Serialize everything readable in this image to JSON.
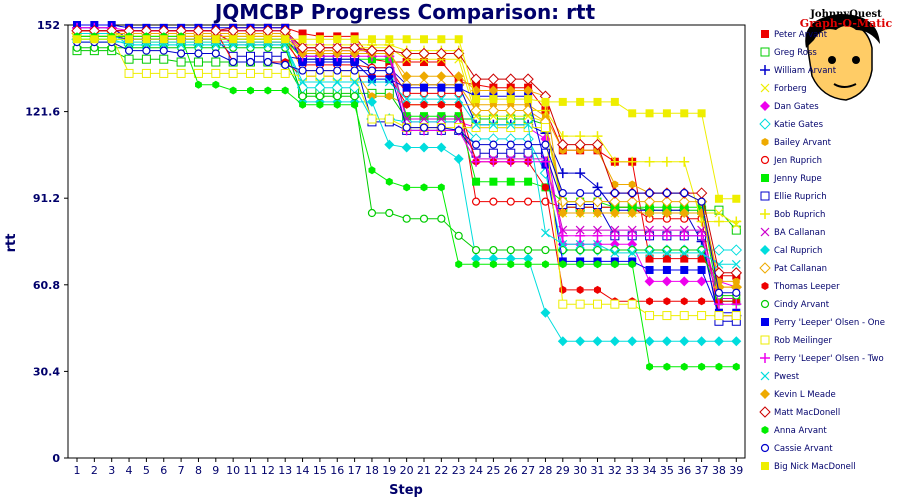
{
  "badge": {
    "line1": "JohnnyQuest",
    "line2": "Graph-O-Matic"
  },
  "chart_data": {
    "type": "line",
    "title": "JQMCBP Progress Comparison: rtt",
    "xlabel": "Step",
    "ylabel": "rtt",
    "x": [
      1,
      2,
      3,
      4,
      5,
      6,
      7,
      8,
      9,
      10,
      11,
      12,
      13,
      14,
      15,
      16,
      17,
      18,
      19,
      20,
      21,
      22,
      23,
      24,
      25,
      26,
      27,
      28,
      29,
      30,
      31,
      32,
      33,
      34,
      35,
      36,
      37,
      38,
      39
    ],
    "ylim": [
      0,
      152
    ],
    "yticks": [
      0,
      30.4,
      60.8,
      91.2,
      121.6,
      152
    ],
    "ytick_labels": [
      "0",
      "30.4",
      "60.8",
      "91.2",
      "121.6",
      "152"
    ],
    "grid": false,
    "legend_position": "right",
    "series": [
      {
        "name": "Peter Arvant",
        "color": "#ee0000",
        "marker": "square-filled",
        "values": [
          150,
          150,
          150,
          150,
          150,
          150,
          150,
          150,
          150,
          151,
          151,
          151,
          151,
          149,
          148,
          148,
          148,
          140,
          139,
          139,
          139,
          139,
          132,
          131,
          130,
          130,
          130,
          122,
          108,
          108,
          108,
          104,
          104,
          70,
          70,
          70,
          70,
          64,
          64
        ]
      },
      {
        "name": "Greg Ross",
        "color": "#00cc00",
        "marker": "square-open",
        "values": [
          143,
          143,
          143,
          140,
          140,
          140,
          139,
          139,
          139,
          139,
          139,
          139,
          139,
          128,
          128,
          128,
          128,
          128,
          128,
          119,
          119,
          119,
          119,
          119,
          119,
          119,
          119,
          117,
          88,
          88,
          88,
          88,
          88,
          87,
          87,
          87,
          87,
          87,
          80
        ]
      },
      {
        "name": "William Arvant",
        "color": "#0000cc",
        "marker": "plus",
        "values": [
          151,
          151,
          151,
          147,
          147,
          147,
          147,
          147,
          147,
          147,
          147,
          147,
          147,
          141,
          141,
          141,
          141,
          137,
          137,
          131,
          131,
          131,
          131,
          117,
          117,
          117,
          117,
          114,
          100,
          100,
          95,
          87,
          87,
          87,
          87,
          87,
          76,
          50,
          50
        ]
      },
      {
        "name": "Forberg",
        "color": "#eeee00",
        "marker": "x",
        "values": [
          150,
          150,
          150,
          146,
          146,
          146,
          146,
          146,
          146,
          146,
          146,
          146,
          146,
          144,
          144,
          144,
          144,
          144,
          144,
          140,
          140,
          140,
          140,
          120,
          120,
          120,
          120,
          118,
          86,
          86,
          86,
          86,
          86,
          86,
          86,
          86,
          86,
          86,
          82
        ]
      },
      {
        "name": "Dan Gates",
        "color": "#ee00ee",
        "marker": "diamond",
        "values": [
          150,
          150,
          150,
          150,
          150,
          150,
          150,
          150,
          150,
          145,
          145,
          145,
          145,
          143,
          143,
          143,
          143,
          143,
          143,
          118,
          118,
          118,
          118,
          116,
          116,
          116,
          116,
          112,
          75,
          75,
          75,
          75,
          75,
          62,
          62,
          62,
          62,
          62,
          60
        ]
      },
      {
        "name": "Katie Gates",
        "color": "#00dddd",
        "marker": "diamond-open",
        "values": [
          147,
          147,
          147,
          145,
          145,
          145,
          145,
          145,
          145,
          145,
          145,
          145,
          145,
          130,
          130,
          130,
          130,
          119,
          119,
          118,
          118,
          118,
          118,
          112,
          112,
          112,
          112,
          100,
          73,
          73,
          73,
          73,
          73,
          73,
          73,
          73,
          73,
          73,
          73
        ]
      },
      {
        "name": "Bailey Arvant",
        "color": "#eeaa00",
        "marker": "hexagon",
        "values": [
          148,
          148,
          148,
          148,
          148,
          148,
          148,
          148,
          148,
          148,
          148,
          148,
          148,
          136,
          136,
          136,
          136,
          127,
          127,
          124,
          124,
          124,
          124,
          124,
          124,
          124,
          124,
          120,
          108,
          108,
          108,
          96,
          96,
          93,
          93,
          93,
          90,
          62,
          62
        ]
      },
      {
        "name": "Jen Ruprich",
        "color": "#ee0000",
        "marker": "circle-open",
        "values": [
          149,
          149,
          149,
          149,
          149,
          149,
          149,
          149,
          149,
          146,
          146,
          146,
          146,
          138,
          138,
          138,
          138,
          137,
          137,
          128,
          128,
          128,
          128,
          90,
          90,
          90,
          90,
          90,
          88,
          88,
          88,
          88,
          88,
          84,
          84,
          84,
          84,
          50,
          50
        ]
      },
      {
        "name": "Jenny Rupe",
        "color": "#00ee00",
        "marker": "square-filled",
        "values": [
          147,
          147,
          147,
          147,
          147,
          147,
          147,
          147,
          147,
          147,
          147,
          147,
          147,
          140,
          140,
          140,
          140,
          140,
          140,
          120,
          120,
          120,
          120,
          97,
          97,
          97,
          97,
          95,
          90,
          90,
          90,
          88,
          88,
          88,
          88,
          88,
          88,
          55,
          55
        ]
      },
      {
        "name": "Ellie Ruprich",
        "color": "#0000cc",
        "marker": "square-open",
        "values": [
          148,
          148,
          148,
          147,
          147,
          147,
          147,
          147,
          147,
          141,
          141,
          141,
          141,
          140,
          140,
          140,
          140,
          118,
          118,
          115,
          115,
          115,
          115,
          107,
          107,
          107,
          107,
          107,
          89,
          89,
          89,
          78,
          78,
          78,
          78,
          78,
          78,
          48,
          48
        ]
      },
      {
        "name": "Bob Ruprich",
        "color": "#eeee00",
        "marker": "plus",
        "values": [
          149,
          149,
          149,
          148,
          148,
          148,
          148,
          148,
          148,
          148,
          148,
          148,
          148,
          145,
          145,
          145,
          145,
          145,
          145,
          143,
          143,
          143,
          143,
          122,
          122,
          122,
          122,
          122,
          113,
          113,
          113,
          104,
          104,
          104,
          104,
          104,
          83,
          83,
          83
        ]
      },
      {
        "name": "BA Callanan",
        "color": "#cc00cc",
        "marker": "x",
        "values": [
          149,
          149,
          149,
          149,
          149,
          149,
          149,
          149,
          149,
          149,
          149,
          149,
          149,
          144,
          144,
          144,
          144,
          142,
          142,
          119,
          119,
          119,
          119,
          105,
          105,
          105,
          105,
          105,
          80,
          80,
          80,
          80,
          80,
          80,
          80,
          80,
          80,
          56,
          56
        ]
      },
      {
        "name": "Cal Ruprich",
        "color": "#00dddd",
        "marker": "diamond",
        "values": [
          146,
          146,
          146,
          146,
          146,
          146,
          146,
          146,
          146,
          146,
          146,
          146,
          146,
          125,
          125,
          125,
          125,
          125,
          110,
          109,
          109,
          109,
          105,
          70,
          70,
          70,
          70,
          51,
          41,
          41,
          41,
          41,
          41,
          41,
          41,
          41,
          41,
          41,
          41
        ]
      },
      {
        "name": "Pat Callanan",
        "color": "#eeaa00",
        "marker": "diamond-open",
        "values": [
          149,
          149,
          149,
          149,
          149,
          149,
          149,
          149,
          149,
          149,
          149,
          149,
          149,
          143,
          143,
          143,
          143,
          143,
          143,
          131,
          131,
          131,
          131,
          122,
          122,
          122,
          122,
          118,
          90,
          90,
          90,
          90,
          90,
          90,
          90,
          90,
          90,
          60,
          60
        ]
      },
      {
        "name": "Thomas Leeper",
        "color": "#ee0000",
        "marker": "hexagon",
        "values": [
          150,
          150,
          150,
          150,
          150,
          150,
          150,
          150,
          150,
          139,
          139,
          139,
          139,
          134,
          134,
          134,
          134,
          134,
          134,
          124,
          124,
          124,
          124,
          104,
          104,
          104,
          104,
          95,
          59,
          59,
          59,
          55,
          55,
          55,
          55,
          55,
          55,
          55,
          55
        ]
      },
      {
        "name": "Cindy Arvant",
        "color": "#00cc00",
        "marker": "circle-open",
        "values": [
          144,
          144,
          144,
          144,
          144,
          144,
          144,
          144,
          144,
          144,
          144,
          144,
          144,
          127,
          127,
          127,
          127,
          86,
          86,
          84,
          84,
          84,
          78,
          73,
          73,
          73,
          73,
          73,
          73,
          73,
          73,
          73,
          73,
          73,
          73,
          73,
          73,
          57,
          57
        ]
      },
      {
        "name": "Perry 'Leeper' Olsen - One",
        "color": "#0000ee",
        "marker": "square-filled",
        "values": [
          152,
          152,
          152,
          151,
          151,
          151,
          151,
          151,
          151,
          151,
          151,
          151,
          151,
          139,
          139,
          139,
          139,
          133,
          133,
          130,
          130,
          130,
          130,
          127,
          127,
          127,
          127,
          103,
          69,
          69,
          69,
          69,
          69,
          66,
          66,
          66,
          66,
          51,
          51
        ]
      },
      {
        "name": "Rob Meilinger",
        "color": "#eeee00",
        "marker": "square-open",
        "values": [
          148,
          148,
          148,
          135,
          135,
          135,
          135,
          135,
          135,
          135,
          135,
          135,
          135,
          134,
          134,
          134,
          134,
          119,
          119,
          116,
          116,
          116,
          116,
          116,
          116,
          116,
          116,
          116,
          54,
          54,
          54,
          54,
          54,
          50,
          50,
          50,
          50,
          50,
          50
        ]
      },
      {
        "name": "Perry 'Leeper' Olsen - Two",
        "color": "#ee00ee",
        "marker": "plus",
        "values": [
          151,
          151,
          151,
          150,
          150,
          150,
          150,
          150,
          150,
          150,
          150,
          150,
          150,
          141,
          141,
          141,
          141,
          141,
          141,
          115,
          115,
          115,
          115,
          104,
          104,
          104,
          104,
          104,
          78,
          78,
          78,
          78,
          78,
          78,
          78,
          78,
          78,
          54,
          54
        ]
      },
      {
        "name": "Pwest",
        "color": "#00dddd",
        "marker": "x",
        "values": [
          149,
          149,
          149,
          145,
          145,
          145,
          145,
          145,
          145,
          145,
          145,
          145,
          145,
          132,
          132,
          132,
          132,
          132,
          132,
          126,
          126,
          126,
          126,
          117,
          117,
          117,
          117,
          79,
          75,
          75,
          75,
          72,
          72,
          72,
          72,
          72,
          72,
          68,
          68
        ]
      },
      {
        "name": "Kevin L Meade",
        "color": "#eeaa00",
        "marker": "diamond",
        "values": [
          148,
          148,
          148,
          148,
          148,
          148,
          148,
          148,
          148,
          148,
          148,
          148,
          148,
          142,
          142,
          142,
          142,
          142,
          142,
          134,
          134,
          134,
          134,
          129,
          129,
          129,
          129,
          127,
          86,
          86,
          86,
          86,
          86,
          86,
          86,
          86,
          86,
          60,
          60
        ]
      },
      {
        "name": "Matt MacDonell",
        "color": "#cc0000",
        "marker": "diamond-open",
        "values": [
          150,
          150,
          150,
          150,
          150,
          150,
          150,
          150,
          150,
          150,
          150,
          150,
          150,
          144,
          144,
          144,
          144,
          143,
          143,
          142,
          142,
          142,
          142,
          133,
          133,
          133,
          133,
          127,
          110,
          110,
          110,
          93,
          93,
          93,
          93,
          93,
          93,
          65,
          65
        ]
      },
      {
        "name": "Anna Arvant",
        "color": "#00ee00",
        "marker": "hexagon",
        "values": [
          148,
          148,
          148,
          148,
          148,
          148,
          148,
          131,
          131,
          129,
          129,
          129,
          129,
          124,
          124,
          124,
          124,
          101,
          97,
          95,
          95,
          95,
          68,
          68,
          68,
          68,
          68,
          68,
          68,
          68,
          68,
          68,
          68,
          32,
          32,
          32,
          32,
          32,
          32
        ]
      },
      {
        "name": "Cassie Arvant",
        "color": "#0000cc",
        "marker": "circle-open",
        "values": [
          146,
          146,
          146,
          143,
          143,
          143,
          142,
          142,
          142,
          139,
          139,
          139,
          138,
          136,
          136,
          136,
          136,
          136,
          136,
          116,
          116,
          116,
          115,
          110,
          110,
          110,
          110,
          110,
          93,
          93,
          93,
          93,
          93,
          93,
          93,
          93,
          90,
          58,
          58
        ]
      },
      {
        "name": "Big Nick MacDonell",
        "color": "#eeee00",
        "marker": "square-filled",
        "values": [
          147,
          147,
          147,
          147,
          147,
          147,
          147,
          147,
          147,
          147,
          147,
          147,
          147,
          147,
          147,
          147,
          147,
          147,
          147,
          147,
          147,
          147,
          147,
          126,
          126,
          126,
          126,
          125,
          125,
          125,
          125,
          125,
          121,
          121,
          121,
          121,
          121,
          91,
          91
        ]
      }
    ]
  }
}
